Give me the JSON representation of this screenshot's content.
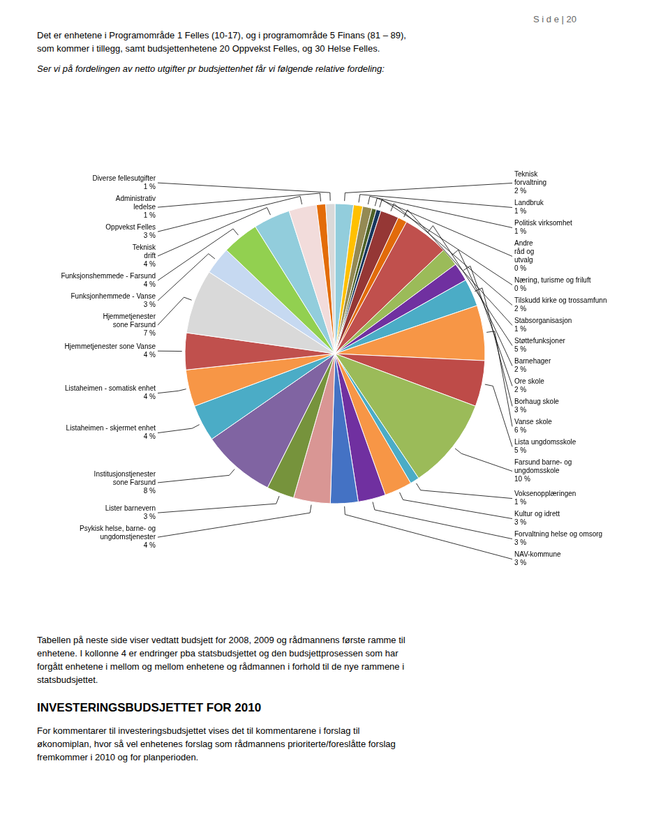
{
  "chart_data": {
    "type": "pie",
    "categories": [
      "Teknisk\nforvaltning",
      "Landbruk",
      "Politisk virksomhet",
      "Andre\nråd og\nutvalg",
      "Næring, turisme og friluft",
      "Tilskudd kirke og trossamfunn",
      "Stabsorganisasjon",
      "Støttefunksjoner",
      "Barnehager",
      "Ore skole",
      "Borhaug skole",
      "Vanse skole",
      "Lista ungdomsskole",
      "Farsund barne- og\nungdomsskole",
      "Voksenopplæringen",
      "Kultur og idrett",
      "Forvaltning helse og omsorg",
      "NAV-kommune",
      "Psykisk helse, barne- og\nungdomstjenester",
      "Lister barnevern",
      "Institusjonstjenester\nsone Farsund",
      "Listaheimen - skjermet enhet",
      "Listaheimen - somatisk enhet",
      "Hjemmetjenester sone Vanse",
      "Hjemmetjenester\nsone Farsund",
      "Funksjonhemmede - Vanse",
      "Funksjonshemmede - Farsund",
      "Teknisk\ndrift",
      "Oppvekst Felles",
      "Administrativ\nledelse",
      "Diverse fellesutgifter"
    ],
    "values": [
      2,
      1,
      1,
      0.5,
      0.5,
      2,
      1,
      5,
      2,
      2,
      3,
      6,
      5,
      10,
      1,
      3,
      3,
      3,
      4,
      3,
      8,
      4,
      4,
      4,
      7,
      3,
      4,
      4,
      3,
      1,
      1
    ],
    "value_labels": [
      "2 %",
      "1 %",
      "1 %",
      "0 %",
      "0 %",
      "2 %",
      "1 %",
      "5 %",
      "2 %",
      "2 %",
      "3 %",
      "6 %",
      "5 %",
      "10 %",
      "1 %",
      "3 %",
      "3 %",
      "3 %",
      "4 %",
      "3 %",
      "8 %",
      "4 %",
      "4 %",
      "4 %",
      "7 %",
      "3 %",
      "4 %",
      "4 %",
      "3 %",
      "1 %",
      "1 %"
    ],
    "data_labels": true,
    "colors": [
      "#92CDDC",
      "#FFC000",
      "#948A54",
      "#4F6228",
      "#17375E",
      "#953735",
      "#E26B0A",
      "#C0504D",
      "#9BBB59",
      "#7030A0",
      "#4BACC6",
      "#F79646",
      "#BE4B48",
      "#9BBB59",
      "#4BACC6",
      "#F79646",
      "#7030A0",
      "#4472C4",
      "#D99694",
      "#76933C",
      "#8064A2",
      "#4BACC6",
      "#F79646",
      "#C0504D",
      "#D9D9D9",
      "#C6D9F1",
      "#92D050",
      "#92CDDC",
      "#F2DCDB",
      "#E36C09",
      "#D9D9D9"
    ],
    "annotations": [
      "S i d e  | 20",
      "Det er enhetene i Programområde 1 Felles (10-17), og i programområde 5 Finans (81 – 89),",
      "som kommer i tillegg, samt budsjettenhetene 20 Oppvekst Felles, og 30 Helse Felles.",
      "Ser vi på fordelingen av netto utgifter pr budsjettenhet får vi følgende relative fordeling:",
      "Tabellen på neste side viser vedtatt budsjett for 2008, 2009 og rådmannens første ramme til",
      "enhetene. I kollonne 4 er endringer pba statsbudsjettet og den budsjettprosessen som har",
      "forgått enhetene i mellom og mellom enhetene og rådmannen i forhold til de nye rammene i",
      "statsbudsjettet.",
      "INVESTERINGSBUDSJETTET FOR 2010",
      "For kommentarer til investeringsbudsjettet vises det til kommentarene i forslag til",
      "økonomiplan, hvor så vel enhetenes forslag som rådmannens prioriterte/foreslåtte forslag",
      "fremkommer i 2010 og for planperioden."
    ]
  }
}
